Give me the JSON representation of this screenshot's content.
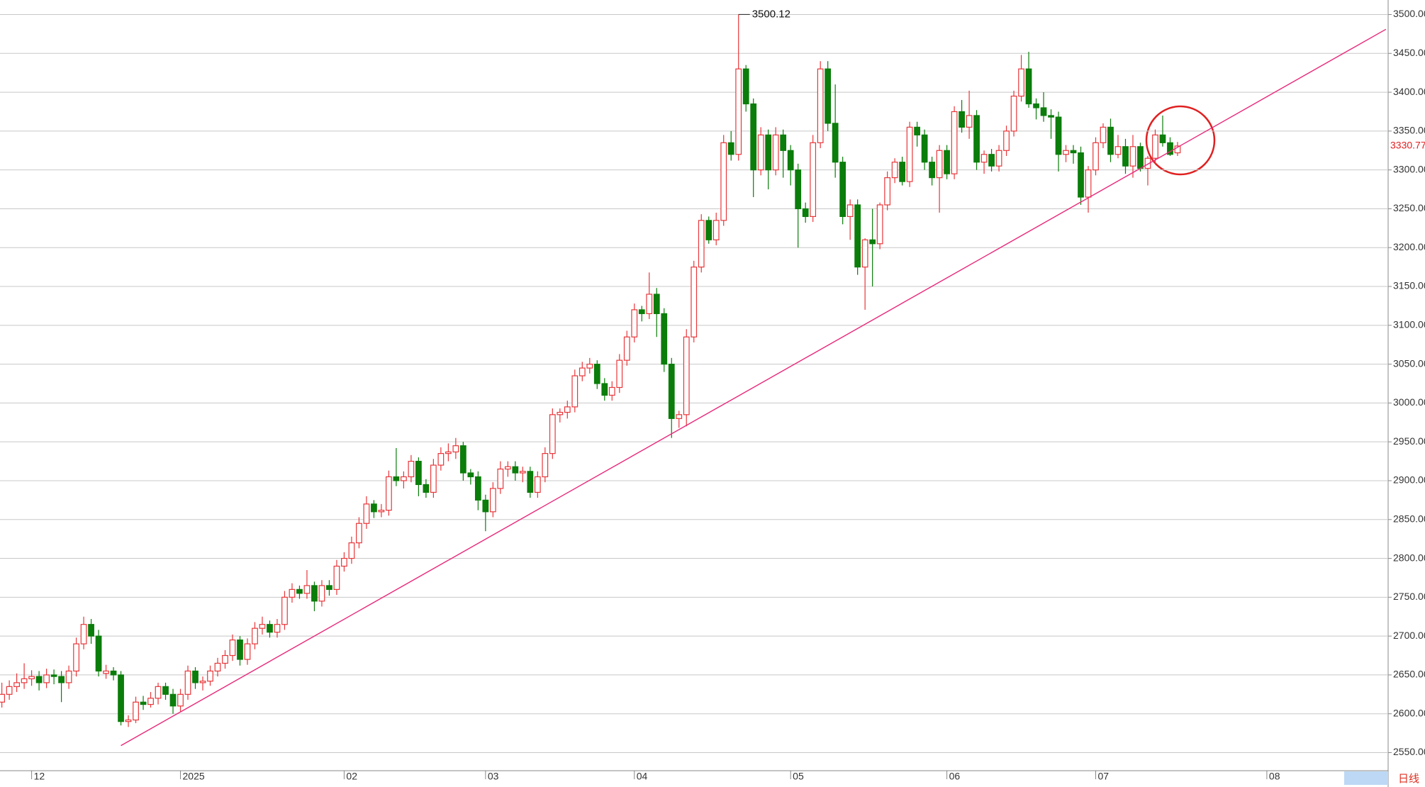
{
  "chart_data": {
    "type": "candlestick",
    "up_color": "#e8363a",
    "down_color": "#0a7d0a",
    "trend_color": "#e8287a",
    "grid": true,
    "xlim": [
      -0.25,
      186.3
    ],
    "ylim": [
      2550,
      3500
    ],
    "xticks": [
      {
        "value": 4,
        "label": "12"
      },
      {
        "value": 24,
        "label": "2025"
      },
      {
        "value": 46,
        "label": "02"
      },
      {
        "value": 65,
        "label": "03"
      },
      {
        "value": 85,
        "label": "04"
      },
      {
        "value": 106,
        "label": "05"
      },
      {
        "value": 127,
        "label": "06"
      },
      {
        "value": 147,
        "label": "07"
      },
      {
        "value": 170,
        "label": "08"
      }
    ],
    "yticks": [
      {
        "value": 2550,
        "label": "2550.00"
      },
      {
        "value": 2600,
        "label": "2600.00"
      },
      {
        "value": 2650,
        "label": "2650.00"
      },
      {
        "value": 2700,
        "label": "2700.00"
      },
      {
        "value": 2750,
        "label": "2750.00"
      },
      {
        "value": 2800,
        "label": "2800.00"
      },
      {
        "value": 2850,
        "label": "2850.00"
      },
      {
        "value": 2900,
        "label": "2900.00"
      },
      {
        "value": 2950,
        "label": "2950.00"
      },
      {
        "value": 3000,
        "label": "3000.00"
      },
      {
        "value": 3050,
        "label": "3050.00"
      },
      {
        "value": 3100,
        "label": "3100.00"
      },
      {
        "value": 3150,
        "label": "3150.00"
      },
      {
        "value": 3200,
        "label": "3200.00"
      },
      {
        "value": 3250,
        "label": "3250.00"
      },
      {
        "value": 3300,
        "label": "3300.00"
      },
      {
        "value": 3350,
        "label": "3350.00"
      },
      {
        "value": 3400,
        "label": "3400.00"
      },
      {
        "value": 3450,
        "label": "3450.00"
      },
      {
        "value": 3500,
        "label": "3500.00"
      }
    ],
    "candles": [
      [
        2615,
        2640,
        2608,
        2625
      ],
      [
        2625,
        2643,
        2618,
        2635
      ],
      [
        2635,
        2652,
        2628,
        2640
      ],
      [
        2640,
        2665,
        2632,
        2645
      ],
      [
        2645,
        2656,
        2636,
        2648
      ],
      [
        2648,
        2655,
        2630,
        2640
      ],
      [
        2640,
        2658,
        2633,
        2650
      ],
      [
        2650,
        2657,
        2638,
        2648
      ],
      [
        2648,
        2655,
        2615,
        2640
      ],
      [
        2640,
        2662,
        2632,
        2655
      ],
      [
        2655,
        2698,
        2648,
        2690
      ],
      [
        2690,
        2725,
        2683,
        2715
      ],
      [
        2715,
        2722,
        2690,
        2700
      ],
      [
        2700,
        2708,
        2648,
        2655
      ],
      [
        2652,
        2663,
        2645,
        2655
      ],
      [
        2655,
        2660,
        2643,
        2650
      ],
      [
        2650,
        2655,
        2585,
        2590
      ],
      [
        2590,
        2598,
        2583,
        2592
      ],
      [
        2592,
        2622,
        2588,
        2615
      ],
      [
        2615,
        2623,
        2605,
        2612
      ],
      [
        2612,
        2628,
        2608,
        2620
      ],
      [
        2620,
        2640,
        2612,
        2635
      ],
      [
        2635,
        2640,
        2618,
        2625
      ],
      [
        2625,
        2632,
        2600,
        2610
      ],
      [
        2610,
        2632,
        2603,
        2625
      ],
      [
        2625,
        2662,
        2618,
        2655
      ],
      [
        2655,
        2660,
        2632,
        2640
      ],
      [
        2640,
        2648,
        2630,
        2642
      ],
      [
        2642,
        2662,
        2636,
        2655
      ],
      [
        2655,
        2672,
        2648,
        2665
      ],
      [
        2665,
        2682,
        2658,
        2675
      ],
      [
        2675,
        2702,
        2668,
        2695
      ],
      [
        2695,
        2700,
        2662,
        2670
      ],
      [
        2670,
        2697,
        2663,
        2690
      ],
      [
        2690,
        2718,
        2683,
        2710
      ],
      [
        2710,
        2725,
        2702,
        2715
      ],
      [
        2715,
        2720,
        2698,
        2705
      ],
      [
        2705,
        2722,
        2698,
        2715
      ],
      [
        2715,
        2758,
        2708,
        2750
      ],
      [
        2750,
        2768,
        2743,
        2760
      ],
      [
        2760,
        2765,
        2748,
        2755
      ],
      [
        2755,
        2785,
        2748,
        2765
      ],
      [
        2765,
        2770,
        2732,
        2745
      ],
      [
        2745,
        2772,
        2738,
        2765
      ],
      [
        2765,
        2772,
        2752,
        2760
      ],
      [
        2760,
        2798,
        2753,
        2790
      ],
      [
        2790,
        2808,
        2783,
        2800
      ],
      [
        2800,
        2828,
        2793,
        2820
      ],
      [
        2820,
        2853,
        2813,
        2845
      ],
      [
        2845,
        2880,
        2838,
        2870
      ],
      [
        2870,
        2875,
        2852,
        2860
      ],
      [
        2860,
        2870,
        2853,
        2862
      ],
      [
        2862,
        2913,
        2855,
        2905
      ],
      [
        2905,
        2942,
        2893,
        2900
      ],
      [
        2900,
        2912,
        2890,
        2905
      ],
      [
        2905,
        2933,
        2898,
        2925
      ],
      [
        2925,
        2930,
        2880,
        2895
      ],
      [
        2895,
        2902,
        2878,
        2885
      ],
      [
        2885,
        2928,
        2878,
        2920
      ],
      [
        2920,
        2943,
        2913,
        2935
      ],
      [
        2935,
        2948,
        2925,
        2937
      ],
      [
        2937,
        2955,
        2928,
        2945
      ],
      [
        2945,
        2950,
        2900,
        2910
      ],
      [
        2910,
        2915,
        2895,
        2905
      ],
      [
        2905,
        2912,
        2862,
        2875
      ],
      [
        2875,
        2882,
        2835,
        2860
      ],
      [
        2860,
        2898,
        2853,
        2890
      ],
      [
        2890,
        2925,
        2883,
        2915
      ],
      [
        2915,
        2925,
        2905,
        2918
      ],
      [
        2918,
        2925,
        2900,
        2910
      ],
      [
        2910,
        2918,
        2898,
        2912
      ],
      [
        2912,
        2918,
        2878,
        2885
      ],
      [
        2885,
        2912,
        2878,
        2905
      ],
      [
        2905,
        2943,
        2898,
        2935
      ],
      [
        2935,
        2993,
        2928,
        2985
      ],
      [
        2985,
        2993,
        2975,
        2988
      ],
      [
        2988,
        3003,
        2980,
        2995
      ],
      [
        2995,
        3043,
        2988,
        3035
      ],
      [
        3035,
        3053,
        3028,
        3045
      ],
      [
        3045,
        3058,
        3038,
        3050
      ],
      [
        3050,
        3055,
        3018,
        3025
      ],
      [
        3025,
        3032,
        3003,
        3010
      ],
      [
        3010,
        3028,
        3003,
        3020
      ],
      [
        3020,
        3063,
        3013,
        3055
      ],
      [
        3055,
        3093,
        3048,
        3085
      ],
      [
        3085,
        3128,
        3078,
        3120
      ],
      [
        3120,
        3125,
        3105,
        3115
      ],
      [
        3115,
        3168,
        3108,
        3140
      ],
      [
        3140,
        3148,
        3085,
        3115
      ],
      [
        3115,
        3122,
        3040,
        3050
      ],
      [
        3050,
        3058,
        2955,
        2980
      ],
      [
        2980,
        2990,
        2968,
        2985
      ],
      [
        2985,
        3095,
        2970,
        3085
      ],
      [
        3085,
        3183,
        3078,
        3175
      ],
      [
        3175,
        3243,
        3168,
        3235
      ],
      [
        3235,
        3240,
        3205,
        3210
      ],
      [
        3210,
        3245,
        3203,
        3235
      ],
      [
        3235,
        3345,
        3228,
        3335
      ],
      [
        3335,
        3350,
        3312,
        3320
      ],
      [
        3320,
        3500.12,
        3312,
        3430
      ],
      [
        3430,
        3435,
        3375,
        3385
      ],
      [
        3385,
        3392,
        3265,
        3300
      ],
      [
        3300,
        3355,
        3293,
        3345
      ],
      [
        3345,
        3352,
        3275,
        3300
      ],
      [
        3300,
        3355,
        3293,
        3345
      ],
      [
        3345,
        3352,
        3290,
        3325
      ],
      [
        3325,
        3332,
        3280,
        3300
      ],
      [
        3300,
        3308,
        3200,
        3250
      ],
      [
        3250,
        3258,
        3232,
        3240
      ],
      [
        3240,
        3345,
        3233,
        3335
      ],
      [
        3335,
        3440,
        3328,
        3430
      ],
      [
        3430,
        3440,
        3350,
        3360
      ],
      [
        3360,
        3410,
        3290,
        3310
      ],
      [
        3310,
        3317,
        3230,
        3240
      ],
      [
        3240,
        3262,
        3210,
        3255
      ],
      [
        3255,
        3262,
        3165,
        3175
      ],
      [
        3175,
        3212,
        3120,
        3210
      ],
      [
        3210,
        3250,
        3150,
        3205
      ],
      [
        3205,
        3258,
        3198,
        3255
      ],
      [
        3255,
        3298,
        3248,
        3290
      ],
      [
        3290,
        3315,
        3283,
        3310
      ],
      [
        3310,
        3317,
        3280,
        3285
      ],
      [
        3285,
        3362,
        3278,
        3355
      ],
      [
        3355,
        3362,
        3330,
        3345
      ],
      [
        3345,
        3352,
        3300,
        3310
      ],
      [
        3310,
        3317,
        3280,
        3290
      ],
      [
        3290,
        3332,
        3245,
        3325
      ],
      [
        3325,
        3332,
        3288,
        3295
      ],
      [
        3295,
        3382,
        3288,
        3375
      ],
      [
        3375,
        3390,
        3348,
        3355
      ],
      [
        3355,
        3402,
        3340,
        3370
      ],
      [
        3370,
        3377,
        3300,
        3310
      ],
      [
        3310,
        3325,
        3295,
        3320
      ],
      [
        3320,
        3327,
        3298,
        3305
      ],
      [
        3305,
        3332,
        3298,
        3325
      ],
      [
        3325,
        3357,
        3318,
        3350
      ],
      [
        3350,
        3402,
        3343,
        3395
      ],
      [
        3395,
        3448,
        3388,
        3430
      ],
      [
        3430,
        3452,
        3380,
        3385
      ],
      [
        3385,
        3392,
        3365,
        3380
      ],
      [
        3380,
        3400,
        3362,
        3370
      ],
      [
        3370,
        3378,
        3340,
        3368
      ],
      [
        3368,
        3375,
        3298,
        3320
      ],
      [
        3320,
        3332,
        3310,
        3325
      ],
      [
        3325,
        3332,
        3308,
        3322
      ],
      [
        3322,
        3330,
        3255,
        3265
      ],
      [
        3265,
        3305,
        3245,
        3300
      ],
      [
        3300,
        3342,
        3293,
        3335
      ],
      [
        3335,
        3360,
        3328,
        3355
      ],
      [
        3355,
        3366,
        3310,
        3320
      ],
      [
        3320,
        3345,
        3315,
        3330
      ],
      [
        3330,
        3340,
        3295,
        3305
      ],
      [
        3305,
        3345,
        3290,
        3330
      ],
      [
        3330,
        3335,
        3298,
        3302
      ],
      [
        3302,
        3318,
        3280,
        3315
      ],
      [
        3315,
        3352,
        3308,
        3345
      ],
      [
        3345,
        3370,
        3330,
        3335
      ],
      [
        3335,
        3342,
        3318,
        3320
      ],
      [
        3322,
        3336,
        3318,
        3330.77
      ]
    ],
    "trendline": [
      [
        16,
        2559
      ],
      [
        186,
        3481
      ]
    ],
    "period_label": "日线"
  }
}
